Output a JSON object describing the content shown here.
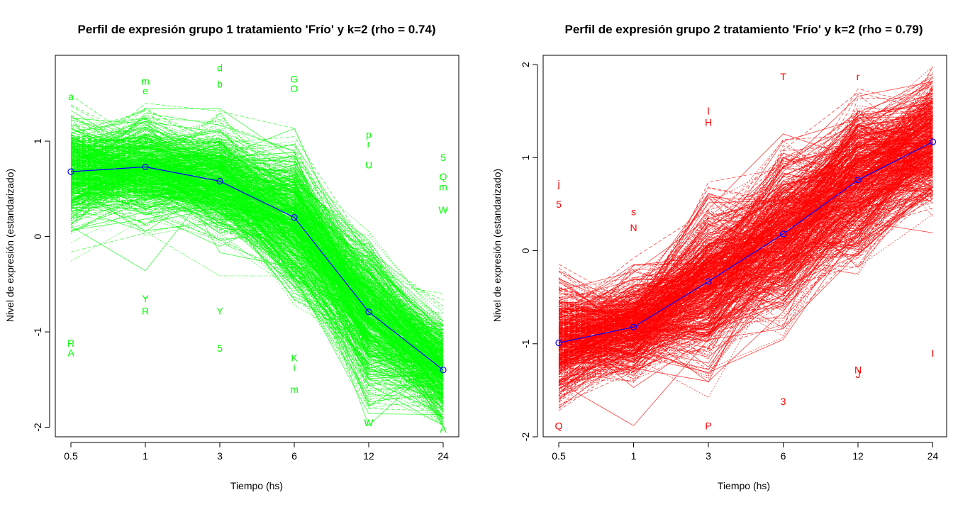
{
  "chart_data": [
    {
      "type": "line",
      "title": "Perfil de expresión grupo 1 tratamiento 'Frío' y k=2 (rho = 0.74)",
      "xlabel": "Tiempo  (hs)",
      "ylabel": "Nivel de expresión (estandarizado)",
      "categories": [
        "0.5",
        "1",
        "3",
        "6",
        "12",
        "24"
      ],
      "ylim": [
        -2.1,
        1.9
      ],
      "yticks": [
        "-2",
        "-1",
        "0",
        "1"
      ],
      "ytick_values": [
        -2,
        -1,
        0,
        1
      ],
      "grid": false,
      "line_color": "#00ff00",
      "mean_color": "#0000ff",
      "series": [
        {
          "name": "",
          "values": [
            0.68,
            0.73,
            0.58,
            0.2,
            -0.79,
            -1.4
          ]
        }
      ],
      "annotations": [
        {
          "t": "a",
          "x": 0,
          "y": 1.47
        },
        {
          "t": "A",
          "x": 0,
          "y": -1.22
        },
        {
          "t": "R",
          "x": 0,
          "y": -1.12
        },
        {
          "t": "m",
          "x": 1,
          "y": 1.63
        },
        {
          "t": "e",
          "x": 1,
          "y": 1.53
        },
        {
          "t": "Y",
          "x": 1,
          "y": -0.65
        },
        {
          "t": "R",
          "x": 1,
          "y": -0.78
        },
        {
          "t": "d",
          "x": 2,
          "y": 1.77
        },
        {
          "t": "b",
          "x": 2,
          "y": 1.6
        },
        {
          "t": "Y",
          "x": 2,
          "y": -0.78
        },
        {
          "t": "5",
          "x": 2,
          "y": -1.17
        },
        {
          "t": "G",
          "x": 3,
          "y": 1.65
        },
        {
          "t": "O",
          "x": 3,
          "y": 1.55
        },
        {
          "t": "K",
          "x": 3,
          "y": -1.27
        },
        {
          "t": "i",
          "x": 3,
          "y": -1.37
        },
        {
          "t": "m",
          "x": 3,
          "y": -1.6
        },
        {
          "t": "p",
          "x": 4,
          "y": 1.07
        },
        {
          "t": "r",
          "x": 4,
          "y": 0.97
        },
        {
          "t": "U",
          "x": 4,
          "y": 0.75
        },
        {
          "t": "W",
          "x": 4,
          "y": -1.95
        },
        {
          "t": "5",
          "x": 5,
          "y": 0.83
        },
        {
          "t": "Q",
          "x": 5,
          "y": 0.63
        },
        {
          "t": "m",
          "x": 5,
          "y": 0.52
        },
        {
          "t": "W",
          "x": 5,
          "y": 0.28
        },
        {
          "t": "A",
          "x": 5,
          "y": -2.02
        }
      ]
    },
    {
      "type": "line",
      "title": "Perfil de expresión grupo 2 tratamiento 'Frío' y k=2 (rho = 0.79)",
      "xlabel": "Tiempo (hs)",
      "ylabel": "Nivel de expresión (estandarizado)",
      "categories": [
        "0.5",
        "1",
        "3",
        "6",
        "12",
        "24"
      ],
      "ylim": [
        -2.0,
        2.1
      ],
      "yticks": [
        "-2",
        "-1",
        "0",
        "1",
        "2"
      ],
      "ytick_values": [
        -2,
        -1,
        0,
        1,
        2
      ],
      "grid": false,
      "line_color": "#ff0000",
      "mean_color": "#0000ff",
      "series": [
        {
          "name": "",
          "values": [
            -0.99,
            -0.82,
            -0.33,
            0.18,
            0.76,
            1.17
          ]
        }
      ],
      "annotations": [
        {
          "t": "j",
          "x": 0,
          "y": 0.72
        },
        {
          "t": "5",
          "x": 0,
          "y": 0.5
        },
        {
          "t": "Q",
          "x": 0,
          "y": -1.88
        },
        {
          "t": "s",
          "x": 1,
          "y": 0.42
        },
        {
          "t": "N",
          "x": 1,
          "y": 0.25
        },
        {
          "t": "l",
          "x": 2,
          "y": 1.5
        },
        {
          "t": "H",
          "x": 2,
          "y": 1.38
        },
        {
          "t": "P",
          "x": 2,
          "y": -1.88
        },
        {
          "t": "T",
          "x": 3,
          "y": 1.87
        },
        {
          "t": "3",
          "x": 3,
          "y": -1.62
        },
        {
          "t": "r",
          "x": 4,
          "y": 1.87
        },
        {
          "t": "N",
          "x": 4,
          "y": -1.28
        },
        {
          "t": "J",
          "x": 4,
          "y": -1.33
        },
        {
          "t": "I",
          "x": 5,
          "y": -1.1
        }
      ]
    }
  ]
}
